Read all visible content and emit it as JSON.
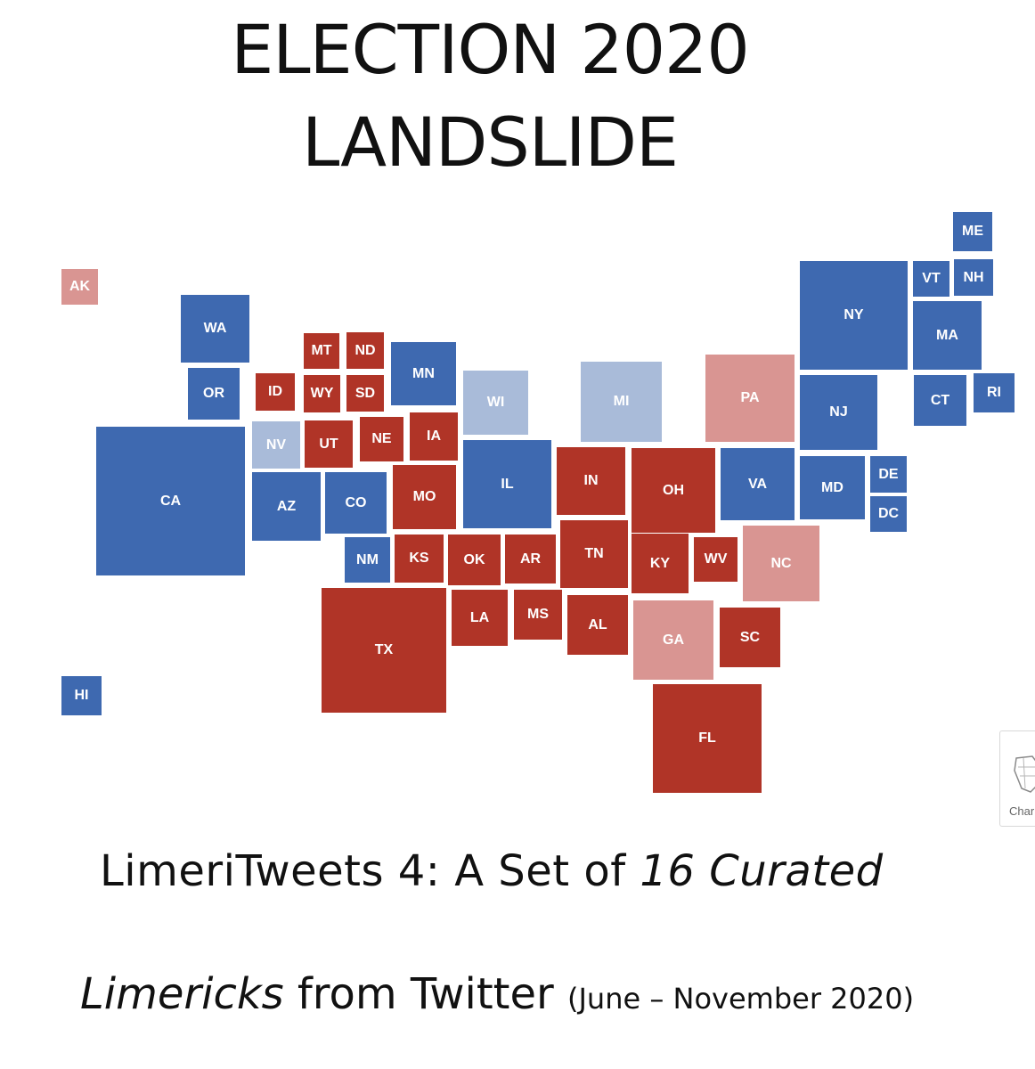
{
  "title": {
    "line1": "ELECTION 2020",
    "line2": "LANDSLIDE"
  },
  "colors": {
    "D": "#3e69b0",
    "LD": "#a9bbd9",
    "R": "#b03427",
    "LR": "#d99592"
  },
  "states": [
    {
      "abbr": "ME",
      "lean": "D"
    },
    {
      "abbr": "AK",
      "lean": "LR"
    },
    {
      "abbr": "VT",
      "lean": "D"
    },
    {
      "abbr": "NH",
      "lean": "D"
    },
    {
      "abbr": "NY",
      "lean": "D"
    },
    {
      "abbr": "WA",
      "lean": "D"
    },
    {
      "abbr": "MA",
      "lean": "D"
    },
    {
      "abbr": "MT",
      "lean": "R"
    },
    {
      "abbr": "ND",
      "lean": "R"
    },
    {
      "abbr": "MN",
      "lean": "D"
    },
    {
      "abbr": "OR",
      "lean": "D"
    },
    {
      "abbr": "ID",
      "lean": "R"
    },
    {
      "abbr": "WY",
      "lean": "R"
    },
    {
      "abbr": "SD",
      "lean": "R"
    },
    {
      "abbr": "WI",
      "lean": "LD"
    },
    {
      "abbr": "MI",
      "lean": "LD"
    },
    {
      "abbr": "PA",
      "lean": "LR"
    },
    {
      "abbr": "CT",
      "lean": "D"
    },
    {
      "abbr": "RI",
      "lean": "D"
    },
    {
      "abbr": "NJ",
      "lean": "D"
    },
    {
      "abbr": "NV",
      "lean": "LD"
    },
    {
      "abbr": "UT",
      "lean": "R"
    },
    {
      "abbr": "NE",
      "lean": "R"
    },
    {
      "abbr": "IA",
      "lean": "R"
    },
    {
      "abbr": "CA",
      "lean": "D"
    },
    {
      "abbr": "IL",
      "lean": "D"
    },
    {
      "abbr": "IN",
      "lean": "R"
    },
    {
      "abbr": "OH",
      "lean": "R"
    },
    {
      "abbr": "VA",
      "lean": "D"
    },
    {
      "abbr": "MD",
      "lean": "D"
    },
    {
      "abbr": "DE",
      "lean": "D"
    },
    {
      "abbr": "AZ",
      "lean": "D"
    },
    {
      "abbr": "CO",
      "lean": "D"
    },
    {
      "abbr": "MO",
      "lean": "R"
    },
    {
      "abbr": "DC",
      "lean": "D"
    },
    {
      "abbr": "NM",
      "lean": "D"
    },
    {
      "abbr": "KS",
      "lean": "R"
    },
    {
      "abbr": "OK",
      "lean": "R"
    },
    {
      "abbr": "AR",
      "lean": "R"
    },
    {
      "abbr": "TN",
      "lean": "R"
    },
    {
      "abbr": "KY",
      "lean": "R"
    },
    {
      "abbr": "WV",
      "lean": "R"
    },
    {
      "abbr": "NC",
      "lean": "LR"
    },
    {
      "abbr": "LA",
      "lean": "R"
    },
    {
      "abbr": "MS",
      "lean": "R"
    },
    {
      "abbr": "AL",
      "lean": "R"
    },
    {
      "abbr": "GA",
      "lean": "LR"
    },
    {
      "abbr": "SC",
      "lean": "R"
    },
    {
      "abbr": "TX",
      "lean": "R"
    },
    {
      "abbr": "HI",
      "lean": "D"
    },
    {
      "abbr": "FL",
      "lean": "R"
    }
  ],
  "subtitle": {
    "line1_prefix": "LimeriTweets 4:  A Set of ",
    "line1_italic": "16 Curated",
    "line2_italic": "Limericks",
    "line2_rest": " from Twitter ",
    "line2_paren": "(June – November 2020)"
  },
  "widget": {
    "label": "Char",
    "icon": "us-map-icon"
  }
}
